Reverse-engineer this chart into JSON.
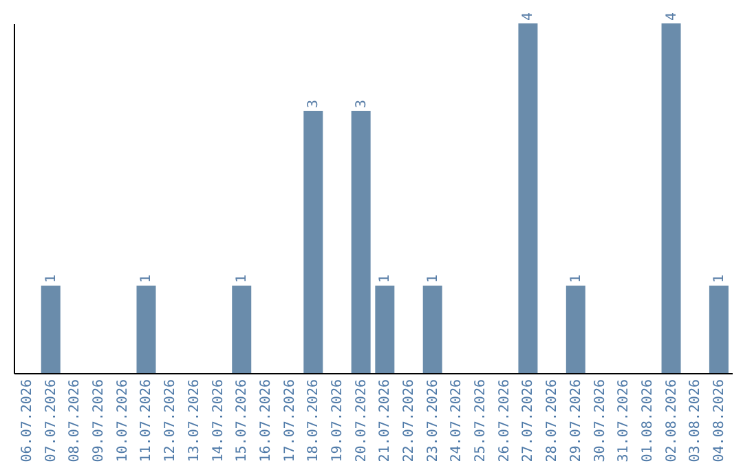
{
  "chart_data": {
    "type": "bar",
    "categories": [
      "06.07.2026",
      "07.07.2026",
      "08.07.2026",
      "09.07.2026",
      "10.07.2026",
      "11.07.2026",
      "12.07.2026",
      "13.07.2026",
      "14.07.2026",
      "15.07.2026",
      "16.07.2026",
      "17.07.2026",
      "18.07.2026",
      "19.07.2026",
      "20.07.2026",
      "21.07.2026",
      "22.07.2026",
      "23.07.2026",
      "24.07.2026",
      "25.07.2026",
      "26.07.2026",
      "27.07.2026",
      "28.07.2026",
      "29.07.2026",
      "30.07.2026",
      "31.07.2026",
      "01.08.2026",
      "02.08.2026",
      "03.08.2026",
      "04.08.2026"
    ],
    "values": [
      0,
      1,
      0,
      0,
      0,
      1,
      0,
      0,
      0,
      1,
      0,
      0,
      3,
      0,
      3,
      1,
      0,
      1,
      0,
      0,
      0,
      4,
      0,
      1,
      0,
      0,
      0,
      4,
      0,
      1
    ],
    "value_labels": [
      null,
      "1",
      null,
      null,
      null,
      "1",
      null,
      null,
      null,
      "1",
      null,
      null,
      "3",
      null,
      "3",
      "1",
      null,
      "1",
      null,
      null,
      null,
      "4",
      null,
      "1",
      null,
      null,
      null,
      "4",
      null,
      "1"
    ],
    "color": "#6a8cab",
    "tick_labels": "x"
  }
}
